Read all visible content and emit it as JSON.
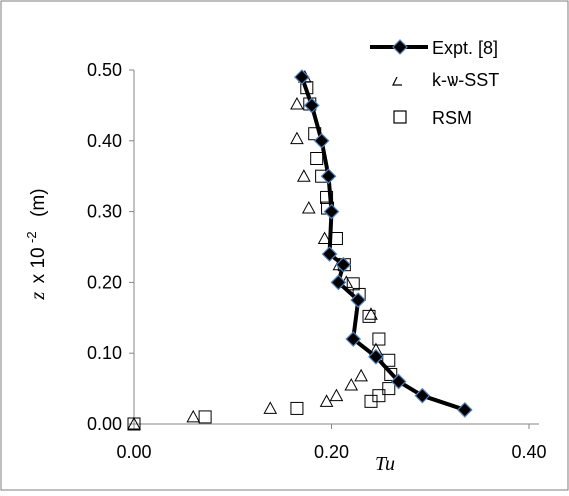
{
  "chart_data": {
    "type": "scatter",
    "xlabel": "Tu",
    "ylabel": {
      "variable": "z",
      "multiplier": "x 10",
      "exponent": "-2",
      "unit": "(m)"
    },
    "xlim": [
      0,
      0.4
    ],
    "ylim": [
      0,
      0.5
    ],
    "x_ticks": [
      {
        "value": 0.0,
        "label": "0.00"
      },
      {
        "value": 0.2,
        "label": "0.20"
      },
      {
        "value": 0.4,
        "label": "0.40"
      }
    ],
    "y_ticks": [
      {
        "value": 0.0,
        "label": "0.00"
      },
      {
        "value": 0.1,
        "label": "0.10"
      },
      {
        "value": 0.2,
        "label": "0.20"
      },
      {
        "value": 0.3,
        "label": "0.30"
      },
      {
        "value": 0.4,
        "label": "0.40"
      },
      {
        "value": 0.5,
        "label": "0.50"
      }
    ],
    "grid": false,
    "legend_position": "top-right",
    "series": [
      {
        "name": "Expt. [8]",
        "style": "line-with-diamond-markers",
        "color": "#000000",
        "marker_fill": "#000000",
        "marker_stroke": "#4f81bd",
        "points": [
          [
            0.17,
            0.49
          ],
          [
            0.18,
            0.45
          ],
          [
            0.19,
            0.4
          ],
          [
            0.197,
            0.35
          ],
          [
            0.2,
            0.3
          ],
          [
            0.198,
            0.24
          ],
          [
            0.212,
            0.225
          ],
          [
            0.207,
            0.2
          ],
          [
            0.227,
            0.175
          ],
          [
            0.222,
            0.12
          ],
          [
            0.245,
            0.095
          ],
          [
            0.268,
            0.06
          ],
          [
            0.292,
            0.04
          ],
          [
            0.335,
            0.02
          ]
        ]
      },
      {
        "name": "k-ѡ-SST",
        "style": "open-triangle",
        "color": "#000000",
        "points": [
          [
            0.0,
            0.0
          ],
          [
            0.06,
            0.01
          ],
          [
            0.138,
            0.022
          ],
          [
            0.195,
            0.032
          ],
          [
            0.205,
            0.04
          ],
          [
            0.22,
            0.055
          ],
          [
            0.23,
            0.068
          ],
          [
            0.245,
            0.105
          ],
          [
            0.24,
            0.155
          ],
          [
            0.215,
            0.2
          ],
          [
            0.208,
            0.225
          ],
          [
            0.193,
            0.262
          ],
          [
            0.177,
            0.305
          ],
          [
            0.172,
            0.35
          ],
          [
            0.165,
            0.403
          ],
          [
            0.165,
            0.452
          ],
          [
            0.173,
            0.49
          ]
        ]
      },
      {
        "name": "RSM",
        "style": "open-square",
        "color": "#000000",
        "points": [
          [
            0.0,
            0.0
          ],
          [
            0.072,
            0.01
          ],
          [
            0.165,
            0.022
          ],
          [
            0.24,
            0.032
          ],
          [
            0.248,
            0.04
          ],
          [
            0.258,
            0.05
          ],
          [
            0.258,
            0.09
          ],
          [
            0.26,
            0.07
          ],
          [
            0.248,
            0.12
          ],
          [
            0.238,
            0.152
          ],
          [
            0.228,
            0.183
          ],
          [
            0.222,
            0.198
          ],
          [
            0.213,
            0.225
          ],
          [
            0.205,
            0.262
          ],
          [
            0.196,
            0.305
          ],
          [
            0.195,
            0.32
          ],
          [
            0.19,
            0.35
          ],
          [
            0.185,
            0.375
          ],
          [
            0.183,
            0.41
          ],
          [
            0.178,
            0.452
          ],
          [
            0.175,
            0.475
          ]
        ]
      }
    ]
  }
}
